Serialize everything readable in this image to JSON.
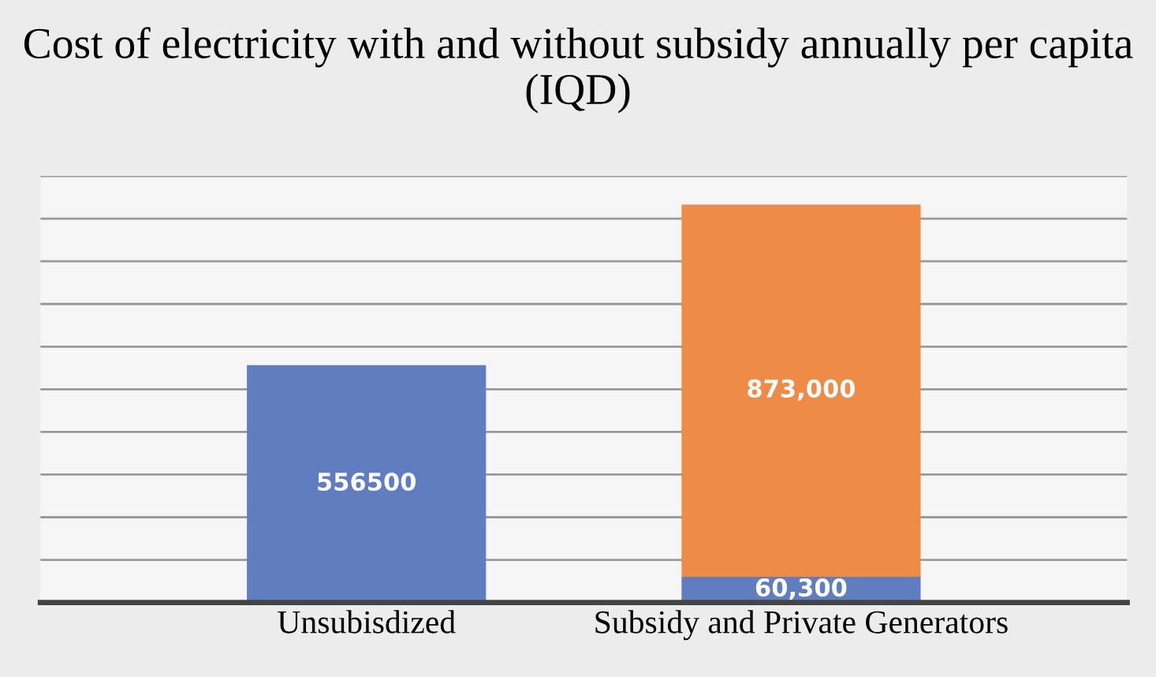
{
  "chart_data": {
    "type": "bar",
    "stacked": true,
    "title": "Cost of electricity with and without subsidy annually per capita (IQD)",
    "categories": [
      "Unsubisdized",
      "Subsidy and Private Generators"
    ],
    "series": [
      {
        "color": "#5f7dbf",
        "values": [
          556500,
          60300
        ],
        "value_labels": [
          "556500",
          "60,300"
        ]
      },
      {
        "color": "#ed8b47",
        "values": [
          null,
          873000
        ],
        "value_labels": [
          null,
          "873,000"
        ]
      }
    ],
    "ylim": [
      0,
      1000000
    ],
    "yticks": [
      {
        "value": 0,
        "label": null
      },
      {
        "value": 100000,
        "label": null
      },
      {
        "value": 200000,
        "label": null
      },
      {
        "value": 300000,
        "label": null
      },
      {
        "value": 400000,
        "label": null
      },
      {
        "value": 500000,
        "label": null
      },
      {
        "value": 600000,
        "label": null
      },
      {
        "value": 700000,
        "label": null
      },
      {
        "value": 800000,
        "label": null
      },
      {
        "value": 900000,
        "label": null
      },
      {
        "value": 1000000,
        "label": null
      }
    ],
    "grid": "y",
    "tick_labels": "x"
  }
}
